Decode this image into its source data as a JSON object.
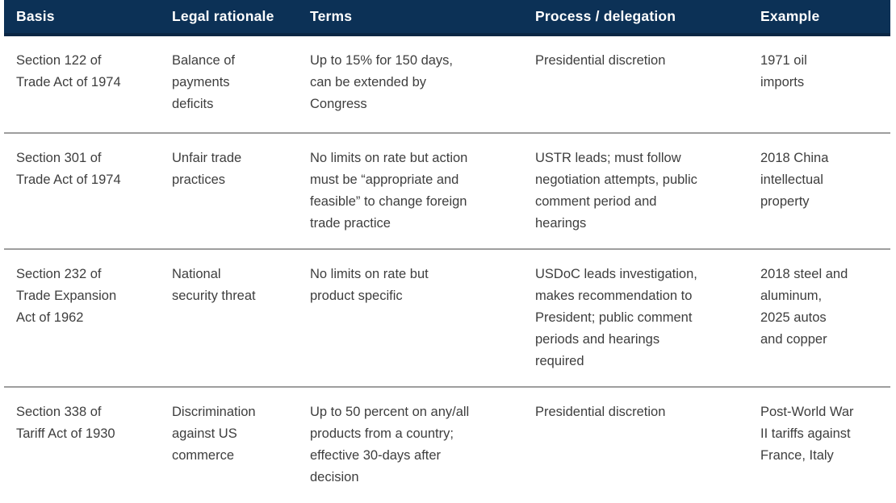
{
  "chart_data": {
    "type": "table",
    "title": "",
    "columns": [
      "Basis",
      "Legal rationale",
      "Terms",
      "Process / delegation",
      "Example"
    ],
    "rows": [
      [
        "Section 122 of\nTrade Act of 1974",
        "Balance of\npayments\ndeficits",
        "Up to 15% for 150 days,\ncan be extended by\nCongress",
        "Presidential discretion",
        "1971 oil\nimports"
      ],
      [
        "Section 301 of\nTrade Act of 1974",
        "Unfair trade\npractices",
        "No limits on rate but action\nmust be “appropriate and\nfeasible” to change foreign\ntrade practice",
        "USTR leads; must follow\nnegotiation attempts, public\ncomment period and\nhearings",
        "2018 China\nintellectual\nproperty"
      ],
      [
        "Section 232 of\nTrade Expansion\nAct of 1962",
        "National\nsecurity threat",
        "No limits on rate but\nproduct specific",
        "USDoC leads investigation,\nmakes recommendation to\nPresident; public comment\nperiods and hearings\nrequired",
        "2018 steel and\naluminum,\n2025 autos\nand copper"
      ],
      [
        "Section 338 of\nTariff Act of 1930",
        "Discrimination\nagainst US\ncommerce",
        "Up to 50 percent on any/all\nproducts from a country;\neffective 30-days after\ndecision",
        "Presidential discretion",
        "Post-World War\nII tariffs against\nFrance, Italy"
      ]
    ],
    "layout": {
      "legend": "none",
      "grid": "horizontal row dividers only"
    }
  },
  "colors": {
    "header_background": "#0c3156",
    "header_border_bottom": "#0a2644",
    "header_text": "#ffffff",
    "body_text": "#3e3e3e",
    "row_divider": "#9e9e9e",
    "page_background": "#ffffff"
  }
}
